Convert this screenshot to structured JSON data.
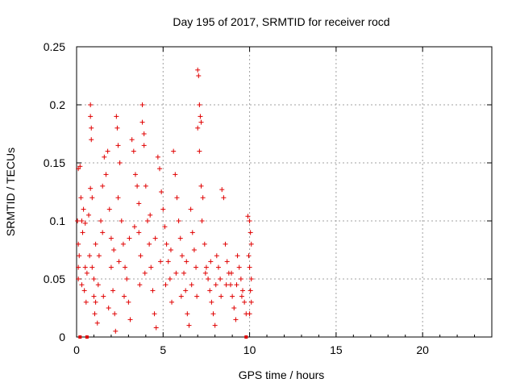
{
  "chart_data": {
    "type": "scatter",
    "title": "Day 195 of 2017, SRMTID for receiver rocd",
    "xlabel": "GPS time / hours",
    "ylabel": "SRMTID / TECUs",
    "xlim": [
      0,
      24
    ],
    "ylim": [
      0,
      0.25
    ],
    "xticks": [
      0,
      5,
      10,
      15,
      20
    ],
    "xtick_labels": [
      "0",
      "5",
      "10",
      "15",
      "20"
    ],
    "yticks": [
      0,
      0.05,
      0.1,
      0.15,
      0.2,
      0.25
    ],
    "ytick_labels": [
      "0",
      "0.05",
      "0.1",
      "0.15",
      "0.2",
      "0.25"
    ],
    "grid": true,
    "marker": "plus",
    "series_color": "#e00000",
    "series": [
      {
        "name": "SRMTID",
        "points": [
          [
            0.1,
            0.06
          ],
          [
            0.1,
            0.05
          ],
          [
            0.05,
            0.1
          ],
          [
            0.1,
            0.08
          ],
          [
            0.15,
            0.07
          ],
          [
            0.2,
            0.147
          ],
          [
            0.1,
            0.145
          ],
          [
            0.25,
            0.12
          ],
          [
            0.3,
            0.1
          ],
          [
            0.35,
            0.09
          ],
          [
            0.4,
            0.11
          ],
          [
            0.5,
            0.098
          ],
          [
            0.5,
            0.06
          ],
          [
            0.45,
            0.04
          ],
          [
            0.55,
            0.03
          ],
          [
            0.7,
            0.105
          ],
          [
            0.75,
            0.07
          ],
          [
            0.8,
            0.2
          ],
          [
            0.8,
            0.19
          ],
          [
            0.85,
            0.18
          ],
          [
            0.85,
            0.17
          ],
          [
            0.8,
            0.128
          ],
          [
            0.9,
            0.12
          ],
          [
            0.9,
            0.06
          ],
          [
            1.0,
            0.05
          ],
          [
            1.0,
            0.035
          ],
          [
            1.1,
            0.03
          ],
          [
            1.05,
            0.02
          ],
          [
            1.2,
            0.012
          ],
          [
            1.1,
            0.08
          ],
          [
            1.3,
            0.07
          ],
          [
            1.4,
            0.1
          ],
          [
            1.5,
            0.09
          ],
          [
            1.5,
            0.13
          ],
          [
            1.6,
            0.155
          ],
          [
            1.7,
            0.14
          ],
          [
            1.8,
            0.16
          ],
          [
            1.9,
            0.11
          ],
          [
            2.0,
            0.085
          ],
          [
            2.0,
            0.06
          ],
          [
            2.1,
            0.04
          ],
          [
            2.2,
            0.02
          ],
          [
            2.25,
            0.005
          ],
          [
            2.3,
            0.19
          ],
          [
            2.35,
            0.18
          ],
          [
            2.4,
            0.165
          ],
          [
            2.5,
            0.15
          ],
          [
            2.4,
            0.12
          ],
          [
            2.6,
            0.1
          ],
          [
            2.7,
            0.08
          ],
          [
            2.8,
            0.06
          ],
          [
            2.9,
            0.05
          ],
          [
            3.0,
            0.03
          ],
          [
            3.1,
            0.015
          ],
          [
            3.2,
            0.17
          ],
          [
            3.3,
            0.16
          ],
          [
            3.4,
            0.14
          ],
          [
            3.5,
            0.13
          ],
          [
            3.6,
            0.115
          ],
          [
            3.6,
            0.09
          ],
          [
            3.7,
            0.07
          ],
          [
            3.8,
            0.2
          ],
          [
            3.8,
            0.185
          ],
          [
            3.9,
            0.175
          ],
          [
            3.9,
            0.165
          ],
          [
            4.0,
            0.13
          ],
          [
            4.1,
            0.1
          ],
          [
            4.2,
            0.08
          ],
          [
            4.3,
            0.06
          ],
          [
            4.4,
            0.04
          ],
          [
            4.5,
            0.02
          ],
          [
            4.6,
            0.008
          ],
          [
            4.7,
            0.155
          ],
          [
            4.8,
            0.145
          ],
          [
            4.9,
            0.125
          ],
          [
            5.0,
            0.11
          ],
          [
            5.1,
            0.095
          ],
          [
            5.2,
            0.08
          ],
          [
            5.3,
            0.065
          ],
          [
            5.4,
            0.05
          ],
          [
            5.5,
            0.03
          ],
          [
            5.6,
            0.16
          ],
          [
            5.7,
            0.14
          ],
          [
            5.8,
            0.12
          ],
          [
            5.9,
            0.1
          ],
          [
            6.0,
            0.085
          ],
          [
            6.1,
            0.07
          ],
          [
            6.2,
            0.055
          ],
          [
            6.3,
            0.04
          ],
          [
            6.4,
            0.02
          ],
          [
            6.5,
            0.01
          ],
          [
            6.6,
            0.11
          ],
          [
            6.7,
            0.09
          ],
          [
            6.8,
            0.075
          ],
          [
            6.9,
            0.06
          ],
          [
            7.0,
            0.23
          ],
          [
            7.05,
            0.225
          ],
          [
            7.1,
            0.2
          ],
          [
            7.15,
            0.19
          ],
          [
            7.2,
            0.185
          ],
          [
            7.0,
            0.18
          ],
          [
            7.1,
            0.16
          ],
          [
            7.2,
            0.13
          ],
          [
            7.3,
            0.12
          ],
          [
            7.25,
            0.1
          ],
          [
            7.4,
            0.08
          ],
          [
            7.5,
            0.06
          ],
          [
            7.6,
            0.05
          ],
          [
            7.7,
            0.04
          ],
          [
            7.8,
            0.03
          ],
          [
            7.9,
            0.02
          ],
          [
            8.0,
            0.01
          ],
          [
            8.1,
            0.07
          ],
          [
            8.2,
            0.06
          ],
          [
            8.3,
            0.05
          ],
          [
            8.4,
            0.127
          ],
          [
            8.5,
            0.12
          ],
          [
            8.6,
            0.08
          ],
          [
            8.7,
            0.065
          ],
          [
            8.8,
            0.055
          ],
          [
            8.9,
            0.045
          ],
          [
            9.0,
            0.035
          ],
          [
            9.1,
            0.025
          ],
          [
            9.2,
            0.015
          ],
          [
            9.3,
            0.07
          ],
          [
            9.4,
            0.06
          ],
          [
            9.5,
            0.05
          ],
          [
            9.6,
            0.04
          ],
          [
            9.7,
            0.03
          ],
          [
            9.8,
            0.02
          ],
          [
            9.9,
            0.104
          ],
          [
            10.0,
            0.1
          ],
          [
            10.05,
            0.09
          ],
          [
            10.1,
            0.08
          ],
          [
            10.0,
            0.06
          ],
          [
            10.1,
            0.05
          ],
          [
            10.05,
            0.04
          ],
          [
            10.1,
            0.03
          ],
          [
            10.0,
            0.02
          ],
          [
            9.95,
            0.07
          ],
          [
            0.3,
            0.045
          ],
          [
            0.6,
            0.055
          ],
          [
            1.25,
            0.045
          ],
          [
            1.55,
            0.035
          ],
          [
            1.85,
            0.025
          ],
          [
            2.15,
            0.075
          ],
          [
            2.45,
            0.065
          ],
          [
            2.75,
            0.035
          ],
          [
            3.05,
            0.085
          ],
          [
            3.35,
            0.095
          ],
          [
            3.65,
            0.045
          ],
          [
            3.95,
            0.055
          ],
          [
            4.25,
            0.105
          ],
          [
            4.55,
            0.085
          ],
          [
            4.85,
            0.065
          ],
          [
            5.15,
            0.045
          ],
          [
            5.45,
            0.075
          ],
          [
            5.75,
            0.055
          ],
          [
            6.05,
            0.035
          ],
          [
            6.35,
            0.065
          ],
          [
            6.65,
            0.045
          ],
          [
            6.95,
            0.035
          ],
          [
            7.45,
            0.055
          ],
          [
            7.75,
            0.065
          ],
          [
            8.05,
            0.045
          ],
          [
            8.35,
            0.035
          ],
          [
            8.65,
            0.045
          ],
          [
            8.95,
            0.055
          ],
          [
            9.25,
            0.045
          ],
          [
            9.55,
            0.035
          ]
        ],
        "zero_markers": [
          0.2,
          0.6,
          9.8
        ]
      }
    ]
  }
}
